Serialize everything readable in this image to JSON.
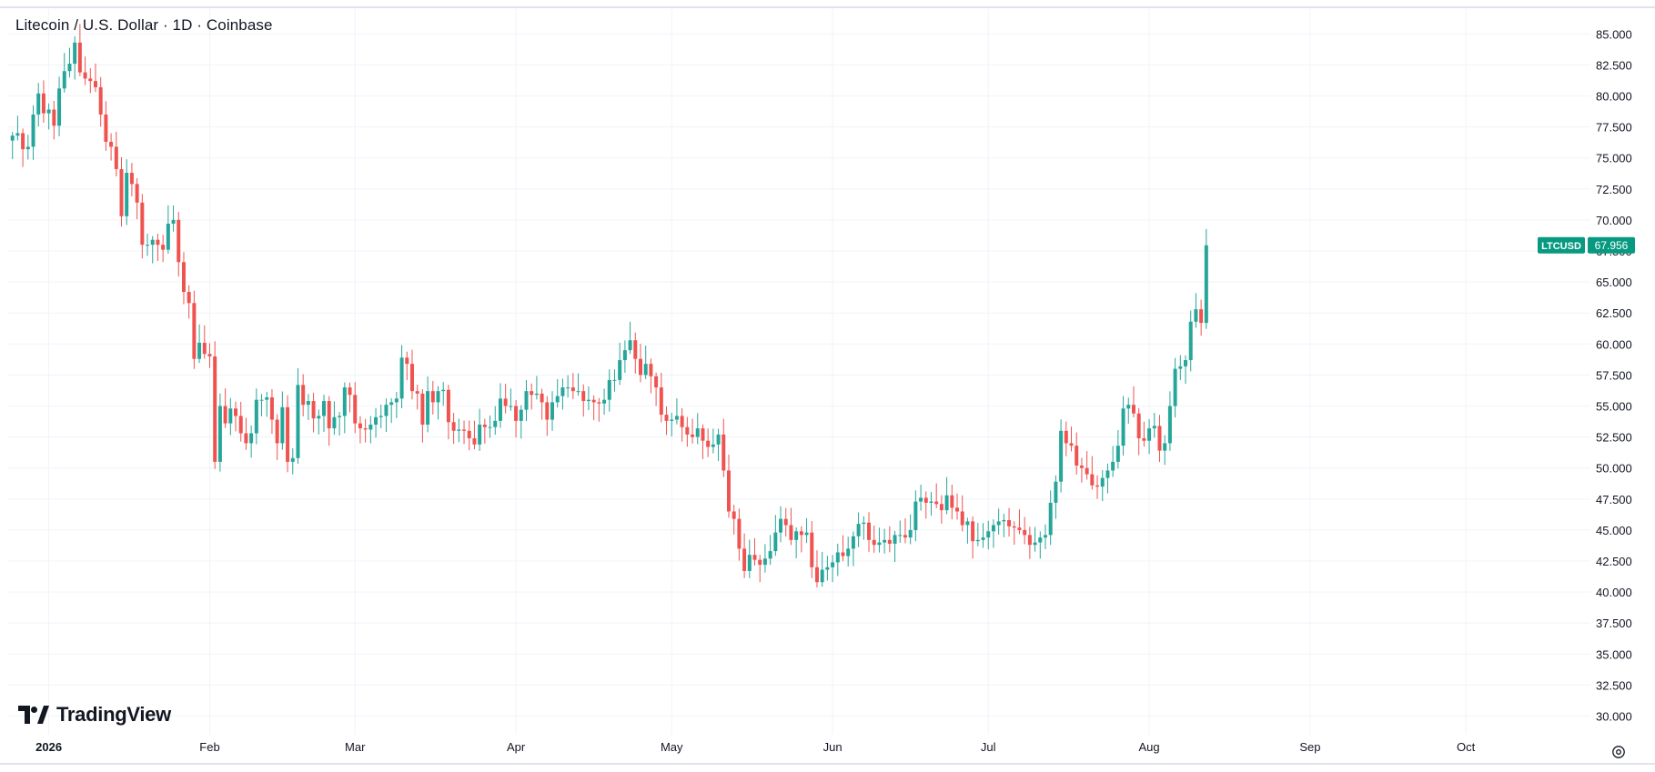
{
  "title": "Litecoin / U.S. Dollar · 1D · Coinbase",
  "brand": {
    "name": "TradingView",
    "icon": "tradingview-logo-icon"
  },
  "settings": {
    "icon": "gear-icon"
  },
  "colors": {
    "up": "#26a69a",
    "down": "#ef5350",
    "grid": "#f0f3fa",
    "axis_text": "#131722",
    "price_label_bg": "#089981"
  },
  "chart_data": {
    "type": "candlestick",
    "symbol": "LTCUSD",
    "last_price": "67.956",
    "interval": "1D",
    "exchange": "Coinbase",
    "ylim": [
      28.5,
      87
    ],
    "y_ticks": [
      "85.000",
      "82.500",
      "80.000",
      "77.500",
      "75.000",
      "72.500",
      "70.000",
      "67.500",
      "65.000",
      "62.500",
      "60.000",
      "57.500",
      "55.000",
      "52.500",
      "50.000",
      "47.500",
      "45.000",
      "42.500",
      "40.000",
      "37.500",
      "35.000",
      "32.500",
      "30.000"
    ],
    "x_ticks": [
      {
        "label": "2026",
        "date": "2026-01-01",
        "bold": true
      },
      {
        "label": "Feb",
        "date": "2026-02-01"
      },
      {
        "label": "Mar",
        "date": "2026-03-01"
      },
      {
        "label": "Apr",
        "date": "2026-04-01"
      },
      {
        "label": "May",
        "date": "2026-05-01"
      },
      {
        "label": "Jun",
        "date": "2026-06-01"
      },
      {
        "label": "Jul",
        "date": "2026-07-01"
      },
      {
        "label": "Aug",
        "date": "2026-08-01"
      },
      {
        "label": "Sep",
        "date": "2026-09-01"
      },
      {
        "label": "Oct",
        "date": "2026-10-01"
      }
    ],
    "x_range": [
      "2025-12-24",
      "2026-10-25"
    ],
    "first_date": "2025-12-25",
    "close": [
      76.8,
      77.0,
      75.7,
      75.9,
      78.5,
      80.2,
      78.6,
      78.9,
      77.6,
      80.6,
      82.0,
      82.6,
      84.3,
      81.9,
      81.4,
      81.2,
      80.7,
      78.5,
      76.3,
      75.9,
      74.1,
      70.3,
      73.8,
      72.9,
      71.4,
      68.0,
      68.0,
      68.4,
      68.0,
      67.6,
      69.7,
      70.0,
      66.6,
      64.2,
      63.3,
      58.8,
      60.1,
      59.2,
      59.0,
      50.5,
      55.0,
      53.6,
      54.8,
      54.2,
      52.8,
      52.0,
      52.8,
      55.5,
      55.5,
      55.7,
      53.9,
      52.0,
      54.9,
      50.5,
      50.8,
      56.7,
      55.1,
      55.4,
      54.0,
      54.2,
      55.4,
      53.2,
      54.1,
      54.2,
      56.5,
      55.9,
      53.6,
      53.2,
      53.1,
      53.5,
      54.1,
      54.2,
      55.1,
      55.3,
      55.6,
      58.9,
      58.4,
      56.2,
      56.0,
      53.5,
      56.2,
      55.3,
      56.2,
      56.3,
      53.7,
      53.0,
      53.1,
      53.0,
      52.4,
      51.9,
      53.5,
      53.3,
      53.3,
      53.8,
      55.6,
      55.0,
      55.0,
      53.8,
      54.7,
      56.2,
      55.9,
      56.0,
      55.3,
      53.9,
      55.3,
      55.8,
      56.5,
      56.5,
      56.2,
      56.2,
      55.4,
      55.5,
      55.3,
      55.2,
      55.5,
      57.1,
      57.1,
      58.7,
      59.5,
      60.3,
      58.8,
      57.5,
      58.4,
      57.4,
      56.5,
      54.3,
      53.8,
      53.9,
      54.2,
      53.3,
      52.7,
      52.5,
      53.2,
      52.2,
      51.7,
      51.9,
      52.7,
      49.8,
      46.5,
      45.9,
      43.5,
      41.7,
      43.0,
      42.6,
      42.2,
      42.7,
      43.3,
      44.8,
      45.9,
      45.4,
      44.2,
      44.9,
      44.6,
      44.8,
      42.0,
      40.8,
      41.8,
      42.0,
      42.4,
      43.2,
      42.9,
      43.5,
      44.5,
      45.5,
      45.6,
      44.2,
      43.8,
      44.0,
      44.2,
      43.9,
      44.6,
      44.6,
      44.4,
      45.0,
      47.3,
      47.6,
      47.2,
      47.3,
      47.1,
      46.6,
      47.8,
      46.8,
      46.5,
      45.4,
      45.7,
      44.1,
      44.2,
      44.4,
      44.9,
      45.4,
      45.7,
      45.8,
      45.3,
      45.2,
      45.0,
      44.6,
      43.8,
      44.0,
      44.4,
      44.6,
      47.2,
      48.9,
      53.0,
      52.0,
      51.8,
      50.2,
      50.0,
      49.5,
      48.6,
      48.5,
      49.2,
      49.8,
      50.5,
      51.8,
      54.8,
      55.1,
      54.4,
      52.4,
      52.2,
      53.2,
      53.4,
      51.4,
      52.0,
      55.0,
      58.0,
      58.2,
      58.7,
      61.8,
      62.8,
      61.7,
      67.956
    ],
    "ohlc_note": "one close per trading day from first_date; open = previous close"
  }
}
